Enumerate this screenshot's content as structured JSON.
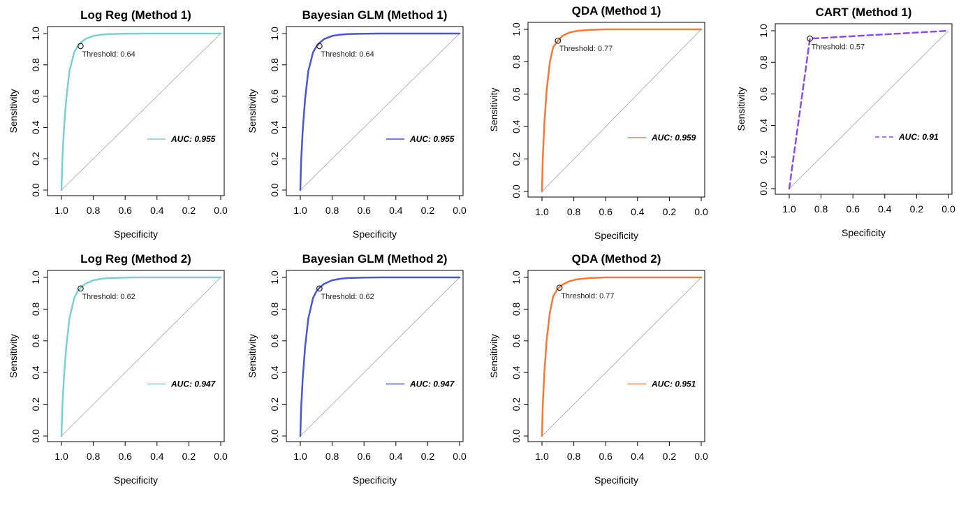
{
  "chart_data": [
    {
      "type": "line",
      "title": "Log Reg (Method 1)",
      "xlabel": "Specificity",
      "ylabel": "Sensitivity",
      "xlim": [
        1.0,
        0.0
      ],
      "ylim": [
        0.0,
        1.0
      ],
      "x_ticks": [
        "1.0",
        "0.8",
        "0.6",
        "0.4",
        "0.2",
        "0.0"
      ],
      "y_ticks": [
        "0.0",
        "0.2",
        "0.4",
        "0.6",
        "0.8",
        "1.0"
      ],
      "color": "#7dcfd1",
      "line_style": "solid",
      "series": [
        {
          "specificity": [
            1.0,
            0.995,
            0.985,
            0.97,
            0.95,
            0.92,
            0.9,
            0.88,
            0.85,
            0.8,
            0.75,
            0.7,
            0.6,
            0.5,
            0.3,
            0.0
          ],
          "sensitivity": [
            0.0,
            0.18,
            0.38,
            0.58,
            0.76,
            0.88,
            0.915,
            0.94,
            0.965,
            0.985,
            0.993,
            0.997,
            0.999,
            1.0,
            1.0,
            1.0
          ]
        }
      ],
      "threshold_point": {
        "specificity": 0.88,
        "sensitivity": 0.92
      },
      "threshold_label": "Threshold: 0.64",
      "auc_label": "AUC: 0.955",
      "legend_position": "right"
    },
    {
      "type": "line",
      "title": "Bayesian GLM (Method 1)",
      "xlabel": "Specificity",
      "ylabel": "Sensitivity",
      "xlim": [
        1.0,
        0.0
      ],
      "ylim": [
        0.0,
        1.0
      ],
      "x_ticks": [
        "1.0",
        "0.8",
        "0.6",
        "0.4",
        "0.2",
        "0.0"
      ],
      "y_ticks": [
        "0.0",
        "0.2",
        "0.4",
        "0.6",
        "0.8",
        "1.0"
      ],
      "color": "#4a56c9",
      "line_style": "solid",
      "series": [
        {
          "specificity": [
            1.0,
            0.995,
            0.985,
            0.97,
            0.95,
            0.92,
            0.9,
            0.88,
            0.85,
            0.8,
            0.75,
            0.7,
            0.6,
            0.5,
            0.3,
            0.0
          ],
          "sensitivity": [
            0.0,
            0.18,
            0.38,
            0.58,
            0.76,
            0.88,
            0.915,
            0.94,
            0.965,
            0.985,
            0.993,
            0.997,
            0.999,
            1.0,
            1.0,
            1.0
          ]
        }
      ],
      "threshold_point": {
        "specificity": 0.88,
        "sensitivity": 0.92
      },
      "threshold_label": "Threshold: 0.64",
      "auc_label": "AUC: 0.955",
      "legend_position": "right"
    },
    {
      "type": "line",
      "title": "QDA (Method 1)",
      "xlabel": "Specificity",
      "ylabel": "Sensitivity",
      "xlim": [
        1.0,
        0.0
      ],
      "ylim": [
        0.0,
        1.0
      ],
      "x_ticks": [
        "1.0",
        "0.8",
        "0.6",
        "0.4",
        "0.2",
        "0.0"
      ],
      "y_ticks": [
        "0.0",
        "0.2",
        "0.4",
        "0.6",
        "0.8",
        "1.0"
      ],
      "color": "#f07a3e",
      "line_style": "solid",
      "series": [
        {
          "specificity": [
            1.0,
            0.995,
            0.985,
            0.97,
            0.95,
            0.93,
            0.9,
            0.87,
            0.83,
            0.78,
            0.7,
            0.6,
            0.5,
            0.3,
            0.0
          ],
          "sensitivity": [
            0.0,
            0.2,
            0.42,
            0.63,
            0.8,
            0.89,
            0.93,
            0.96,
            0.98,
            0.99,
            0.997,
            1.0,
            1.0,
            1.0,
            1.0
          ]
        }
      ],
      "threshold_point": {
        "specificity": 0.9,
        "sensitivity": 0.93
      },
      "threshold_label": "Threshold: 0.77",
      "auc_label": "AUC: 0.959",
      "legend_position": "right"
    },
    {
      "type": "line",
      "title": "CART (Method 1)",
      "xlabel": "Specificity",
      "ylabel": "Sensitivity",
      "xlim": [
        1.0,
        0.0
      ],
      "ylim": [
        0.0,
        1.0
      ],
      "x_ticks": [
        "1.0",
        "0.8",
        "0.6",
        "0.4",
        "0.2",
        "0.0"
      ],
      "y_ticks": [
        "0.0",
        "0.2",
        "0.4",
        "0.6",
        "0.8",
        "1.0"
      ],
      "color": "#8a4fe0",
      "line_style": "dashed",
      "series": [
        {
          "specificity": [
            1.0,
            0.87,
            0.0
          ],
          "sensitivity": [
            0.0,
            0.95,
            1.0
          ]
        }
      ],
      "threshold_point": {
        "specificity": 0.87,
        "sensitivity": 0.95
      },
      "threshold_label": "Threshold: 0.57",
      "auc_label": "AUC: 0.91",
      "legend_position": "right"
    },
    {
      "type": "line",
      "title": "Log Reg (Method 2)",
      "xlabel": "Specificity",
      "ylabel": "Sensitivity",
      "xlim": [
        1.0,
        0.0
      ],
      "ylim": [
        0.0,
        1.0
      ],
      "x_ticks": [
        "1.0",
        "0.8",
        "0.6",
        "0.4",
        "0.2",
        "0.0"
      ],
      "y_ticks": [
        "0.0",
        "0.2",
        "0.4",
        "0.6",
        "0.8",
        "1.0"
      ],
      "color": "#7dcfd1",
      "line_style": "solid",
      "series": [
        {
          "specificity": [
            1.0,
            0.995,
            0.985,
            0.97,
            0.95,
            0.92,
            0.9,
            0.88,
            0.85,
            0.8,
            0.75,
            0.7,
            0.6,
            0.5,
            0.3,
            0.0
          ],
          "sensitivity": [
            0.0,
            0.17,
            0.36,
            0.56,
            0.74,
            0.87,
            0.91,
            0.935,
            0.96,
            0.982,
            0.991,
            0.996,
            0.999,
            1.0,
            1.0,
            1.0
          ]
        }
      ],
      "threshold_point": {
        "specificity": 0.88,
        "sensitivity": 0.93
      },
      "threshold_label": "Threshold: 0.62",
      "auc_label": "AUC: 0.947",
      "legend_position": "right"
    },
    {
      "type": "line",
      "title": "Bayesian GLM (Method 2)",
      "xlabel": "Specificity",
      "ylabel": "Sensitivity",
      "xlim": [
        1.0,
        0.0
      ],
      "ylim": [
        0.0,
        1.0
      ],
      "x_ticks": [
        "1.0",
        "0.8",
        "0.6",
        "0.4",
        "0.2",
        "0.0"
      ],
      "y_ticks": [
        "0.0",
        "0.2",
        "0.4",
        "0.6",
        "0.8",
        "1.0"
      ],
      "color": "#4a56c9",
      "line_style": "solid",
      "series": [
        {
          "specificity": [
            1.0,
            0.995,
            0.985,
            0.97,
            0.95,
            0.92,
            0.9,
            0.88,
            0.85,
            0.8,
            0.75,
            0.7,
            0.6,
            0.5,
            0.3,
            0.0
          ],
          "sensitivity": [
            0.0,
            0.17,
            0.36,
            0.56,
            0.74,
            0.87,
            0.91,
            0.935,
            0.96,
            0.982,
            0.991,
            0.996,
            0.999,
            1.0,
            1.0,
            1.0
          ]
        }
      ],
      "threshold_point": {
        "specificity": 0.88,
        "sensitivity": 0.93
      },
      "threshold_label": "Threshold: 0.62",
      "auc_label": "AUC: 0.947",
      "legend_position": "right"
    },
    {
      "type": "line",
      "title": "QDA (Method 2)",
      "xlabel": "Specificity",
      "ylabel": "Sensitivity",
      "xlim": [
        1.0,
        0.0
      ],
      "ylim": [
        0.0,
        1.0
      ],
      "x_ticks": [
        "1.0",
        "0.8",
        "0.6",
        "0.4",
        "0.2",
        "0.0"
      ],
      "y_ticks": [
        "0.0",
        "0.2",
        "0.4",
        "0.6",
        "0.8",
        "1.0"
      ],
      "color": "#f07a3e",
      "line_style": "solid",
      "series": [
        {
          "specificity": [
            1.0,
            0.995,
            0.985,
            0.97,
            0.95,
            0.93,
            0.9,
            0.87,
            0.83,
            0.78,
            0.7,
            0.6,
            0.5,
            0.3,
            0.0
          ],
          "sensitivity": [
            0.0,
            0.19,
            0.4,
            0.61,
            0.78,
            0.88,
            0.93,
            0.955,
            0.975,
            0.988,
            0.996,
            1.0,
            1.0,
            1.0,
            1.0
          ]
        }
      ],
      "threshold_point": {
        "specificity": 0.89,
        "sensitivity": 0.935
      },
      "threshold_label": "Threshold: 0.77",
      "auc_label": "AUC: 0.951",
      "legend_position": "right"
    }
  ]
}
